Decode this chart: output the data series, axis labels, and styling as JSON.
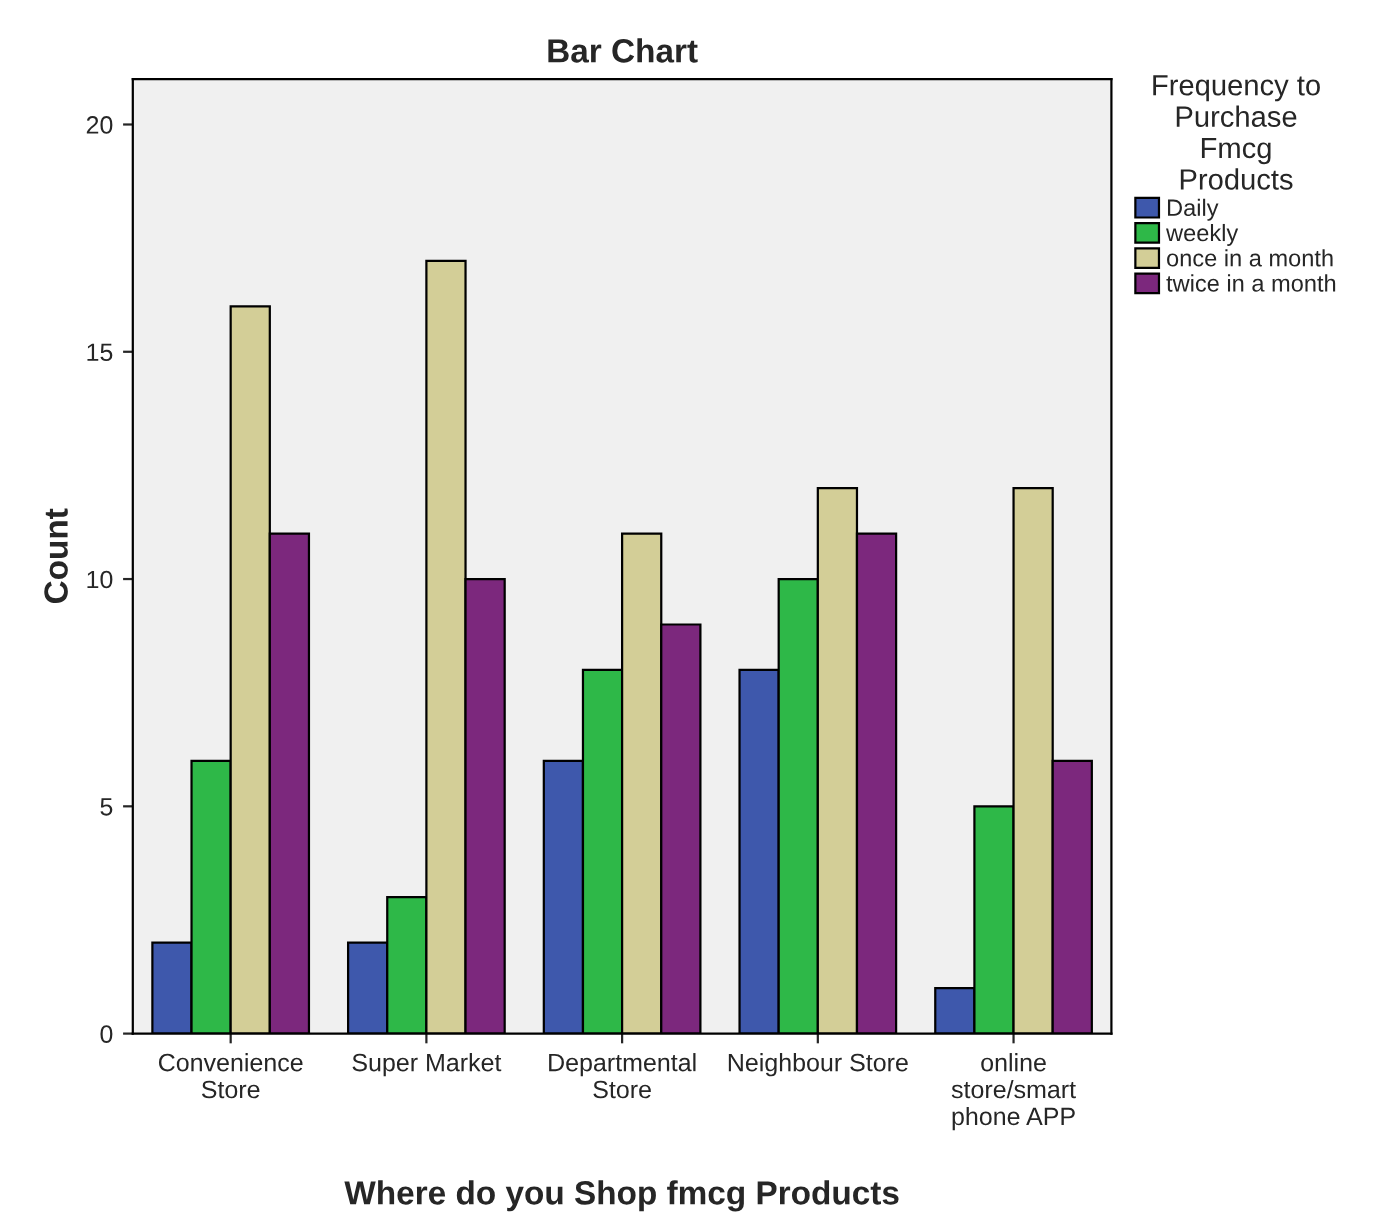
{
  "chart_data": {
    "type": "bar",
    "title": "Bar Chart",
    "xlabel": "Where do you Shop fmcg Products",
    "ylabel": "Count",
    "legend_title": "Frequency to\nPurchase\nFmcg\nProducts",
    "categories": [
      "Convenience\nStore",
      "Super Market",
      "Departmental\nStore",
      "Neighbour Store",
      "online\nstore/smart\nphone APP"
    ],
    "series": [
      {
        "name": "Daily",
        "color": "#3e58ac",
        "values": [
          2,
          2,
          6,
          8,
          1
        ]
      },
      {
        "name": "weekly",
        "color": "#2eb848",
        "values": [
          6,
          3,
          8,
          10,
          5
        ]
      },
      {
        "name": "once in a month",
        "color": "#d3ce97",
        "values": [
          16,
          17,
          11,
          12,
          12
        ]
      },
      {
        "name": "twice in a month",
        "color": "#7c287d",
        "values": [
          11,
          10,
          9,
          11,
          6
        ]
      }
    ],
    "ylim": [
      0,
      21
    ],
    "yticks": [
      0,
      5,
      10,
      15,
      20
    ],
    "grid": false,
    "legend": "top right"
  }
}
